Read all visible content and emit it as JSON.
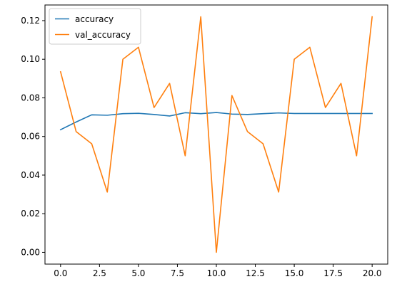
{
  "chart_data": {
    "type": "line",
    "title": "",
    "xlabel": "",
    "ylabel": "",
    "x": [
      0,
      1,
      2,
      3,
      4,
      5,
      6,
      7,
      8,
      9,
      10,
      11,
      12,
      13,
      14,
      15,
      16,
      17,
      18,
      19,
      20
    ],
    "series": [
      {
        "name": "accuracy",
        "color": "#1f77b4",
        "values": [
          0.0635,
          0.0675,
          0.0712,
          0.071,
          0.0718,
          0.072,
          0.0714,
          0.0706,
          0.0723,
          0.0718,
          0.0724,
          0.0716,
          0.0714,
          0.0718,
          0.0722,
          0.0719,
          0.0719,
          0.0719,
          0.0719,
          0.0719,
          0.0719
        ]
      },
      {
        "name": "val_accuracy",
        "color": "#ff7f0e",
        "values": [
          0.0935,
          0.0625,
          0.0562,
          0.0312,
          0.1,
          0.1062,
          0.075,
          0.0875,
          0.05,
          0.122,
          0.0,
          0.0812,
          0.0625,
          0.0562,
          0.0312,
          0.1,
          0.1062,
          0.075,
          0.0875,
          0.05,
          0.122
        ]
      }
    ],
    "xlim": [
      -1,
      21
    ],
    "ylim": [
      -0.0061,
      0.1281
    ],
    "xticks": [
      0.0,
      2.5,
      5.0,
      7.5,
      10.0,
      12.5,
      15.0,
      17.5,
      20.0
    ],
    "xtick_labels": [
      "0.0",
      "2.5",
      "5.0",
      "7.5",
      "10.0",
      "12.5",
      "15.0",
      "17.5",
      "20.0"
    ],
    "yticks": [
      0.0,
      0.02,
      0.04,
      0.06,
      0.08,
      0.1,
      0.12
    ],
    "ytick_labels": [
      "0.00",
      "0.02",
      "0.04",
      "0.06",
      "0.08",
      "0.10",
      "0.12"
    ],
    "grid": false,
    "legend_position": "top-left"
  }
}
